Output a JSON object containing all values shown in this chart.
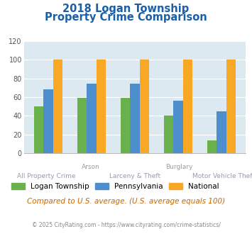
{
  "title_line1": "2018 Logan Township",
  "title_line2": "Property Crime Comparison",
  "categories": [
    "All Property Crime",
    "Arson",
    "Larceny & Theft",
    "Burglary",
    "Motor Vehicle Theft"
  ],
  "logan_values": [
    50,
    59,
    59,
    40,
    14
  ],
  "pennsylvania_values": [
    68,
    74,
    74,
    56,
    45
  ],
  "national_values": [
    100,
    100,
    100,
    100,
    100
  ],
  "color_logan": "#6ab04c",
  "color_pennsylvania": "#4d8fcc",
  "color_national": "#f9a825",
  "ylim": [
    0,
    120
  ],
  "yticks": [
    0,
    20,
    40,
    60,
    80,
    100,
    120
  ],
  "plot_bg": "#dce9f0",
  "legend_labels": [
    "Logan Township",
    "Pennsylvania",
    "National"
  ],
  "note_text": "Compared to U.S. average. (U.S. average equals 100)",
  "footer_text": "© 2025 CityRating.com - https://www.cityrating.com/crime-statistics/",
  "title_color": "#1a5fa8",
  "note_color": "#cc6600",
  "footer_color": "#888888",
  "xlabel_color": "#9999aa",
  "grid_color": "#ffffff",
  "bar_width": 0.22
}
